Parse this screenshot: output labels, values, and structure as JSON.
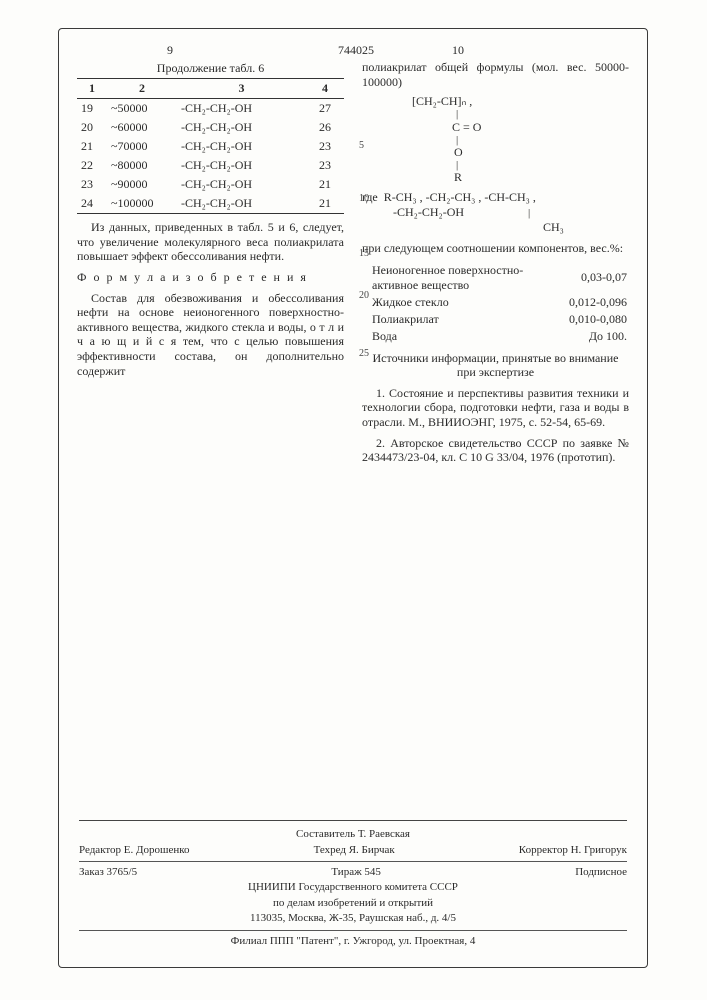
{
  "docNumber": "744025",
  "leftPageNum": "9",
  "rightPageNum": "10",
  "tableTitle": "Продолжение табл. 6",
  "tableHeaders": [
    "1",
    "2",
    "3",
    "4"
  ],
  "tableRows": [
    {
      "c1": "19",
      "c2": "~50000",
      "c3": "-CH₂-CH₂-OH",
      "c4": "27"
    },
    {
      "c1": "20",
      "c2": "~60000",
      "c3": "-CH₂-CH₂-OH",
      "c4": "26"
    },
    {
      "c1": "21",
      "c2": "~70000",
      "c3": "-CH₂-CH₂-OH",
      "c4": "23"
    },
    {
      "c1": "22",
      "c2": "~80000",
      "c3": "-CH₂-CH₂-OH",
      "c4": "23"
    },
    {
      "c1": "23",
      "c2": "~90000",
      "c3": "-CH₂-CH₂-OH",
      "c4": "21"
    },
    {
      "c1": "24",
      "c2": "~100000",
      "c3": "-CH₂-CH₂-OH",
      "c4": "21"
    }
  ],
  "para1": "Из данных, приведенных в табл. 5 и 6, следует, что увеличение молекулярного веса полиакрилата повышает эффект обессоливания нефти.",
  "formulaHeading": "Ф о р м у л а  и з о б р е т е н и я",
  "para2": "Состав для обезвоживания и обессоливания нефти на основе неионогенного поверхностно-активного вещества, жидкого стекла и воды, о т л и ч а ю щ и й с я тем, что с целью повышения эффективности состава, он дополнительно содержит",
  "rightIntro": "полиакрилат общей формулы (мол. вес. 50000-100000)",
  "formulaMain1": "[CH₂-CH]ₙ ,",
  "formulaMain2": "C = O",
  "formulaMain3": "O",
  "formulaMain4": "R",
  "whereLabel": "где",
  "whereBody1": "R-CH₃ , -CH₂-CH₃ , -CH-CH₃ ,",
  "whereBody2": "-CH₂-CH₂-OH",
  "whereBody2b": "CH₃",
  "ratioIntro": "при следующем соотношении компонентов, вес.%:",
  "ratios": [
    {
      "name": "Неионогенное поверхностно-активное вещество",
      "val": "0,03-0,07"
    },
    {
      "name": "Жидкое стекло",
      "val": "0,012-0,096"
    },
    {
      "name": "Полиакрилат",
      "val": "0,010-0,080"
    },
    {
      "name": "Вода",
      "val": "До 100."
    }
  ],
  "sourcesTitle": "Источники информации, принятые во внимание при экспертизе",
  "source1": "1. Состояние и перспективы развития техники и технологии сбора, подготовки нефти, газа и воды в отрасли. М., ВНИИОЭНГ, 1975, с. 52-54, 65-69.",
  "source2": "2. Авторское свидетельство СССР по заявке № 2434473/23-04, кл. C 10 G 33/04, 1976 (прототип).",
  "lineNumbers": [
    "5",
    "10",
    "15",
    "20",
    "25"
  ],
  "lineNumberTops": [
    62,
    115,
    170,
    212,
    270
  ],
  "footer": {
    "compiler": "Составитель Т. Раевская",
    "editor": "Редактор Е. Дорошенко",
    "tech": "Техред Я. Бирчак",
    "corrector": "Корректор Н. Григорук",
    "order": "Заказ 3765/5",
    "tirazh": "Тираж 545",
    "signed": "Подписное",
    "org": "ЦНИИПИ Государственного комитета СССР",
    "org2": "по делам изобретений и открытий",
    "addr": "113035, Москва, Ж-35, Раушская наб., д. 4/5",
    "branch": "Филиал ППП \"Патент\", г. Ужгород, ул. Проектная, 4"
  }
}
